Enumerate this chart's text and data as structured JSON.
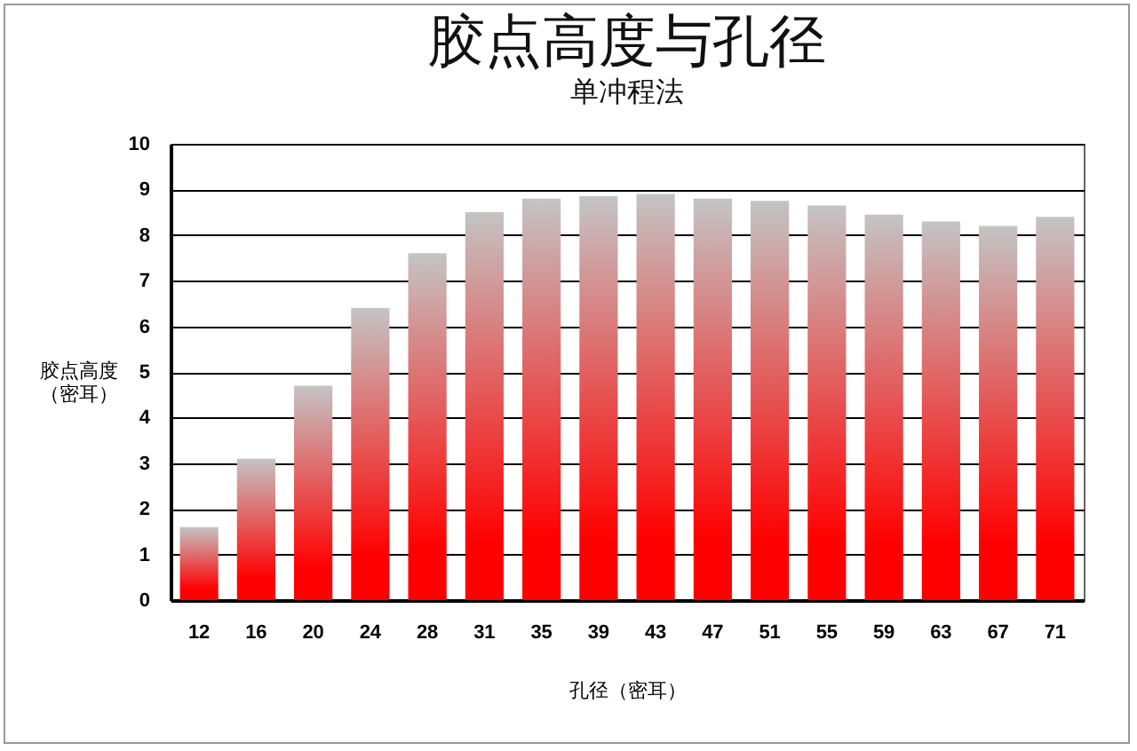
{
  "chart_data": {
    "type": "bar",
    "title": "胶点高度与孔径",
    "subtitle": "单冲程法",
    "xlabel": "孔径（密耳）",
    "ylabel": "胶点高度（密耳）",
    "categories": [
      "12",
      "16",
      "20",
      "24",
      "28",
      "31",
      "35",
      "39",
      "43",
      "47",
      "51",
      "55",
      "59",
      "63",
      "67",
      "71"
    ],
    "values": [
      1.6,
      3.1,
      4.7,
      6.4,
      7.6,
      8.5,
      8.8,
      8.85,
      8.9,
      8.8,
      8.75,
      8.65,
      8.45,
      8.3,
      8.2,
      8.4
    ],
    "color": "#ff0000",
    "ylim": [
      0,
      10
    ],
    "yticks": [
      0,
      1,
      2,
      3,
      4,
      5,
      6,
      7,
      8,
      9,
      10
    ],
    "grid": "y",
    "legend": false
  }
}
